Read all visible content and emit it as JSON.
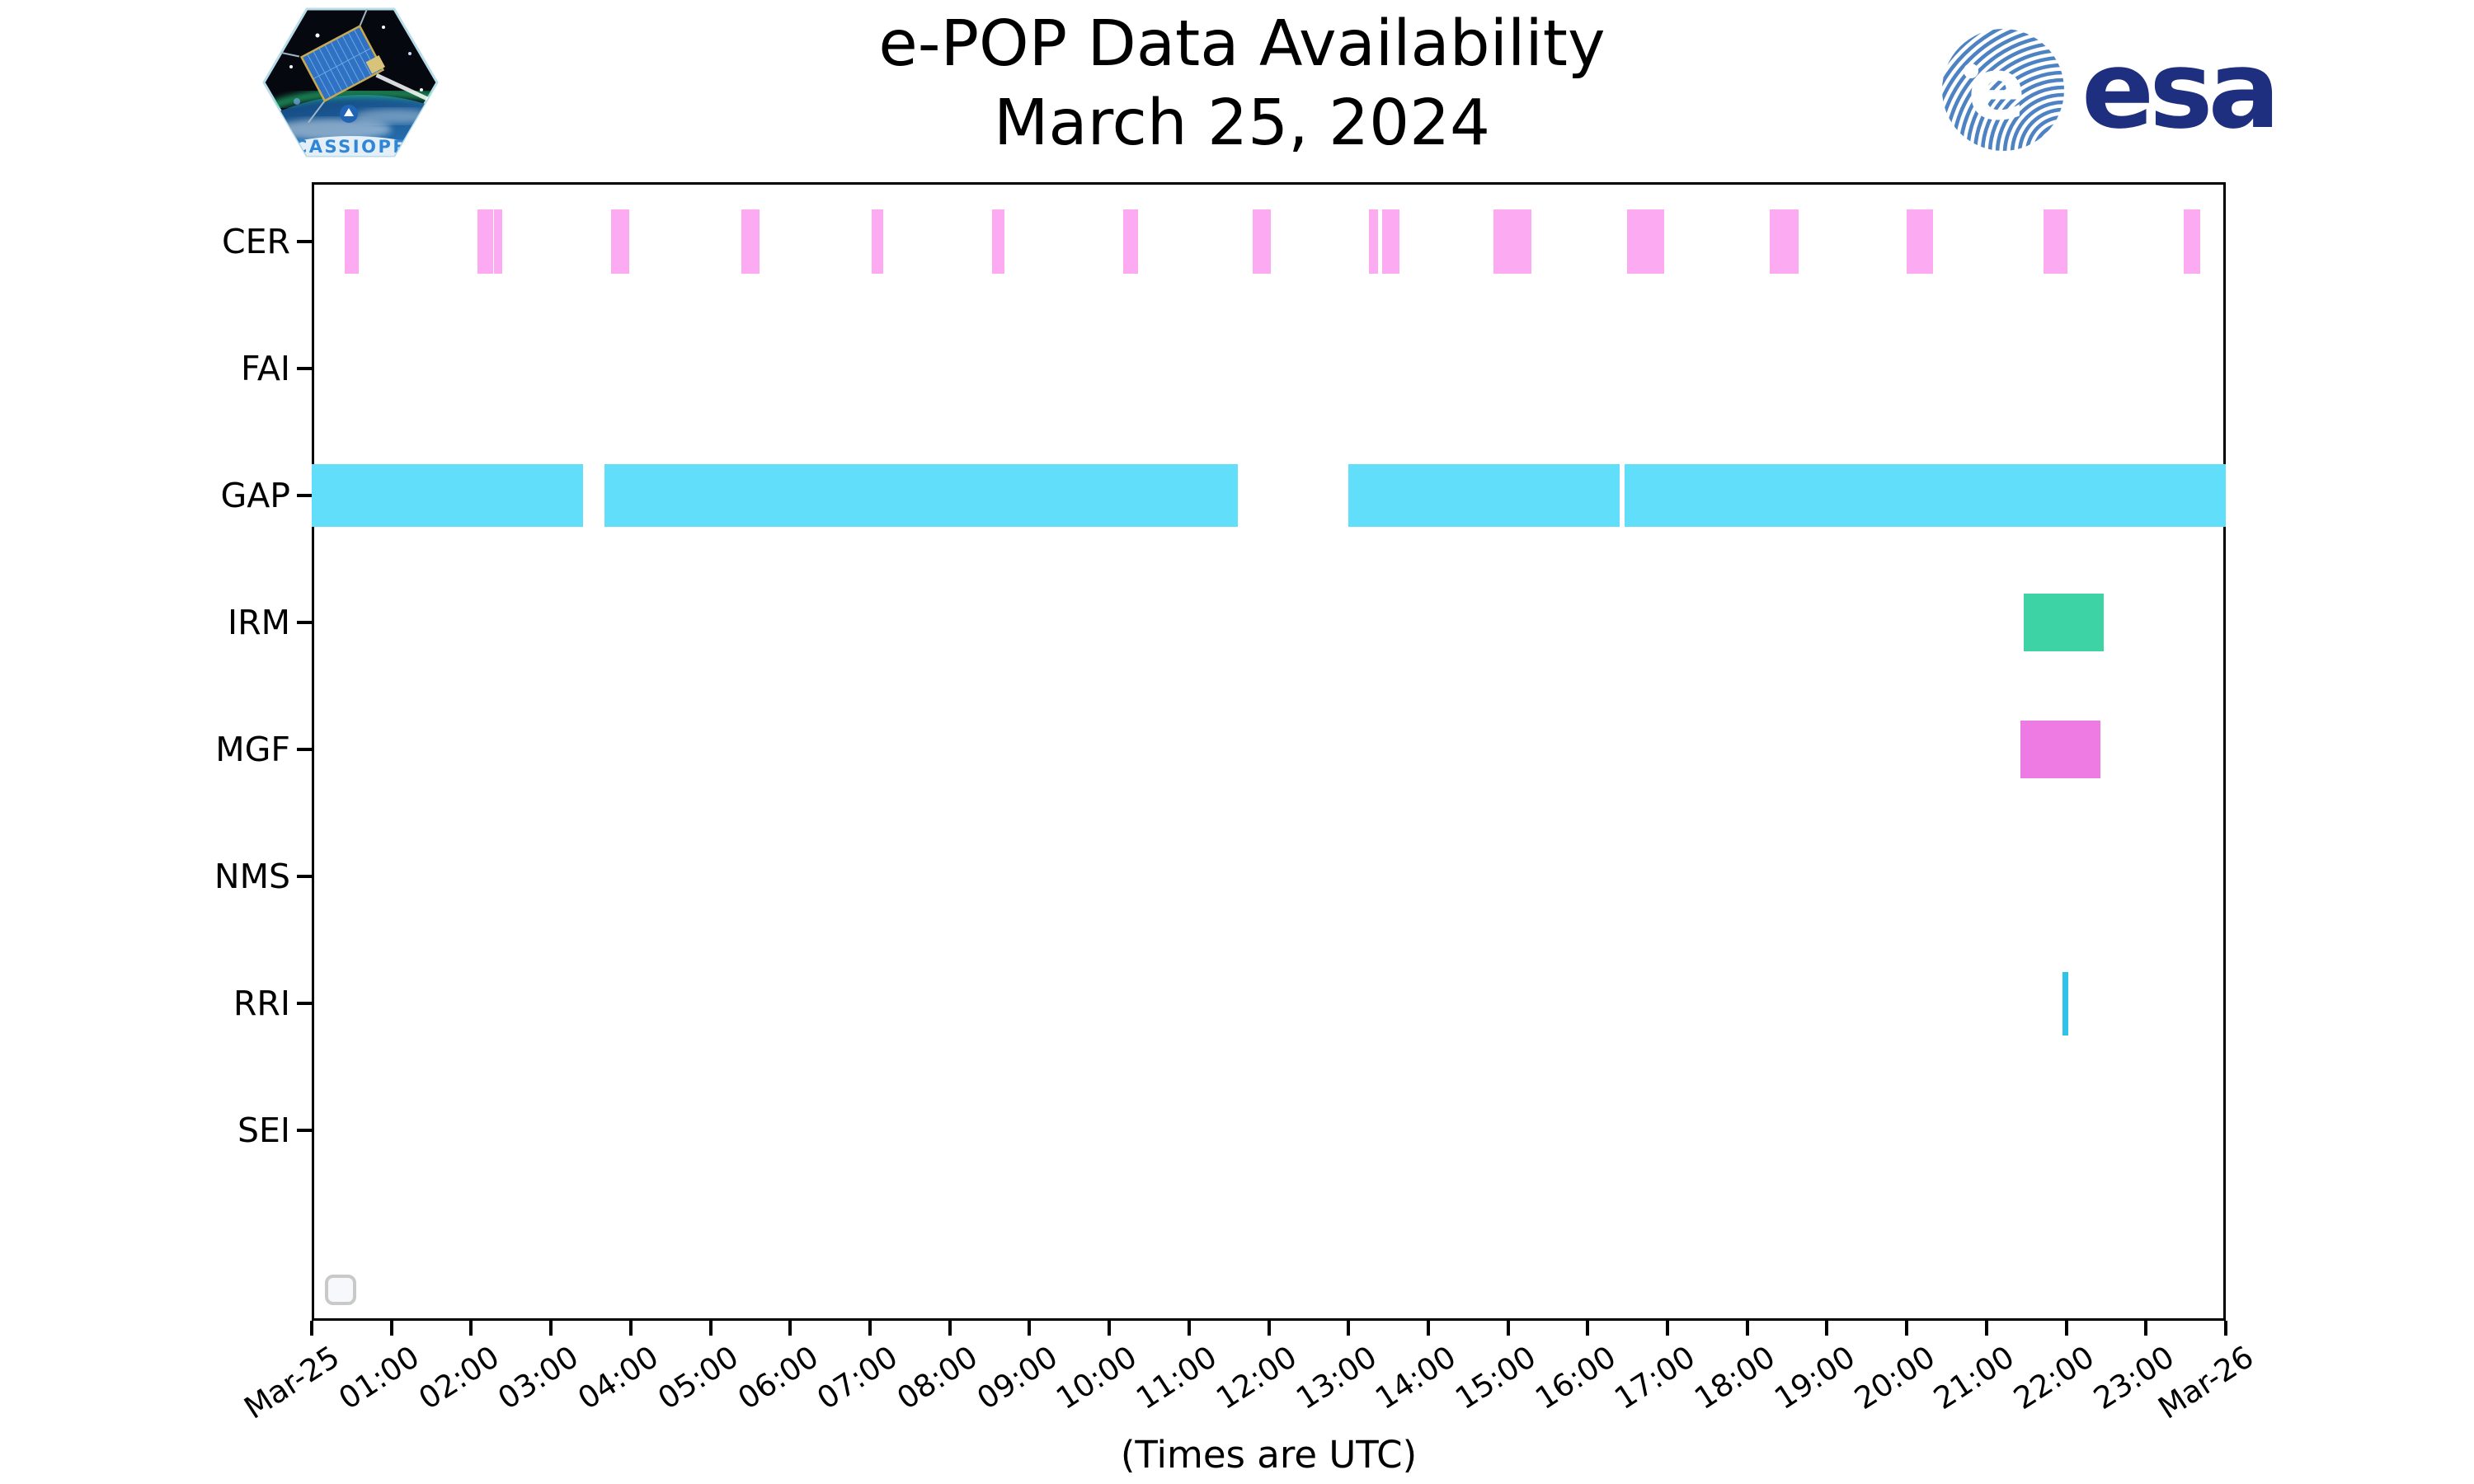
{
  "header": {
    "title_line1": "e-POP Data Availability",
    "title_line2": "March 25, 2024"
  },
  "logos": {
    "cassiope_patch_label": "CASSIOPE",
    "esa_wordmark": "esa"
  },
  "footer": {
    "caption": "(Times are UTC)"
  },
  "chart_data": {
    "type": "timeline",
    "title": "e-POP Data Availability March 25, 2024",
    "xlabel": "(Times are UTC)",
    "x_axis_hours_range": [
      0,
      24
    ],
    "x_tick_labels": [
      "Mar-25",
      "01:00",
      "02:00",
      "03:00",
      "04:00",
      "05:00",
      "06:00",
      "07:00",
      "08:00",
      "09:00",
      "10:00",
      "11:00",
      "12:00",
      "13:00",
      "14:00",
      "15:00",
      "16:00",
      "17:00",
      "18:00",
      "19:00",
      "20:00",
      "21:00",
      "22:00",
      "23:00",
      "Mar-26"
    ],
    "rows": [
      "CER",
      "FAI",
      "GAP",
      "IRM",
      "MGF",
      "NMS",
      "RRI",
      "SEI"
    ],
    "colors": {
      "CER": "#fcaaf2",
      "GAP": "#60defa",
      "IRM": "#3dd3a5",
      "MGF": "#ee7ae3",
      "RRI": "#2fc3ea"
    },
    "bars": [
      {
        "row": "CER",
        "start_h": 0.41,
        "end_h": 0.59
      },
      {
        "row": "CER",
        "start_h": 2.08,
        "end_h": 2.27
      },
      {
        "row": "CER",
        "start_h": 2.29,
        "end_h": 2.39
      },
      {
        "row": "CER",
        "start_h": 3.75,
        "end_h": 3.98
      },
      {
        "row": "CER",
        "start_h": 5.39,
        "end_h": 5.62
      },
      {
        "row": "CER",
        "start_h": 7.02,
        "end_h": 7.17
      },
      {
        "row": "CER",
        "start_h": 8.53,
        "end_h": 8.69
      },
      {
        "row": "CER",
        "start_h": 10.17,
        "end_h": 10.36
      },
      {
        "row": "CER",
        "start_h": 11.8,
        "end_h": 12.03
      },
      {
        "row": "CER",
        "start_h": 13.26,
        "end_h": 13.37
      },
      {
        "row": "CER",
        "start_h": 13.42,
        "end_h": 13.64
      },
      {
        "row": "CER",
        "start_h": 14.82,
        "end_h": 15.29
      },
      {
        "row": "CER",
        "start_h": 16.49,
        "end_h": 16.96
      },
      {
        "row": "CER",
        "start_h": 18.28,
        "end_h": 18.64
      },
      {
        "row": "CER",
        "start_h": 20.0,
        "end_h": 20.33
      },
      {
        "row": "CER",
        "start_h": 21.71,
        "end_h": 22.01
      },
      {
        "row": "CER",
        "start_h": 23.47,
        "end_h": 23.68
      },
      {
        "row": "GAP",
        "start_h": 0.0,
        "end_h": 3.4
      },
      {
        "row": "GAP",
        "start_h": 3.67,
        "end_h": 11.61
      },
      {
        "row": "GAP",
        "start_h": 13.0,
        "end_h": 16.4
      },
      {
        "row": "GAP",
        "start_h": 16.46,
        "end_h": 24.0
      },
      {
        "row": "IRM",
        "start_h": 21.47,
        "end_h": 22.47
      },
      {
        "row": "MGF",
        "start_h": 21.43,
        "end_h": 22.43
      },
      {
        "row": "RRI",
        "start_h": 21.95,
        "end_h": 22.03
      }
    ],
    "legend_visible_entries": 0,
    "grid": false
  }
}
